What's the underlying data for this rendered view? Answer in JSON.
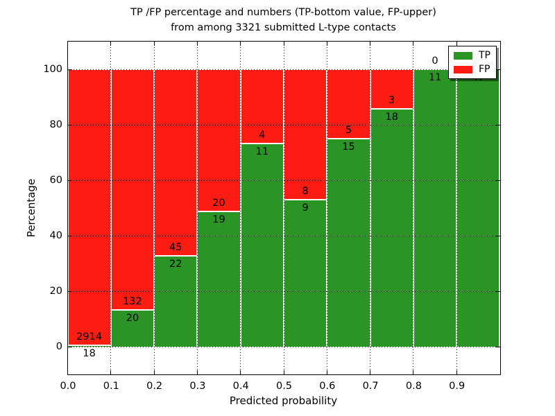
{
  "figure": {
    "title_line1": "TP /FP percentage and numbers (TP-bottom value, FP-upper)",
    "title_line2": "from among 3321 submitted L-type contacts",
    "background_color": "#ffffff"
  },
  "chart_data": {
    "type": "bar",
    "stacked": true,
    "normalization": "each bar normalized to 100% of bin total",
    "title": "TP /FP percentage and numbers (TP-bottom value, FP-upper) from among 3321 submitted L-type contacts",
    "xlabel": "Predicted probability",
    "ylabel": "Percentage",
    "xlim": [
      0.0,
      1.0
    ],
    "ylim": [
      -10,
      110
    ],
    "grid": true,
    "grid_style": "dotted",
    "total_submitted_contacts": 3321,
    "bin_width": 0.1,
    "xticks": [
      "0.0",
      "0.1",
      "0.2",
      "0.3",
      "0.4",
      "0.5",
      "0.6",
      "0.7",
      "0.8",
      "0.9"
    ],
    "yticks": [
      0,
      20,
      40,
      60,
      80,
      100
    ],
    "categories": [
      "0.0-0.1",
      "0.1-0.2",
      "0.2-0.3",
      "0.3-0.4",
      "0.4-0.5",
      "0.5-0.6",
      "0.6-0.7",
      "0.7-0.8",
      "0.8-0.9",
      "0.9-1.0"
    ],
    "series": [
      {
        "name": "TP",
        "position": "bottom",
        "color": "#2a9424",
        "values": [
          18,
          20,
          22,
          19,
          11,
          9,
          15,
          18,
          11,
          47
        ]
      },
      {
        "name": "FP",
        "position": "top",
        "color": "#fc1d12",
        "values": [
          2914,
          132,
          45,
          20,
          4,
          8,
          5,
          3,
          0,
          0
        ]
      }
    ],
    "tp_percent_of_bin": [
      0.61,
      13.16,
      32.84,
      48.72,
      73.33,
      52.94,
      75.0,
      85.71,
      100.0,
      100.0
    ],
    "legend": {
      "position": "upper right",
      "entries": [
        {
          "label": "TP",
          "color": "#2a9424"
        },
        {
          "label": "FP",
          "color": "#fc1d12"
        }
      ]
    },
    "axis_color": "#000000",
    "text_color": "#000000"
  }
}
